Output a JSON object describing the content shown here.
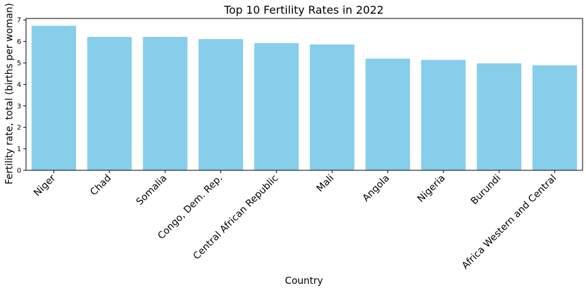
{
  "chart_data": {
    "type": "bar",
    "title": "Top 10 Fertility Rates in 2022",
    "xlabel": "Country",
    "ylabel": "Fertility rate, total (births per woman)",
    "categories": [
      "Niger",
      "Chad",
      "Somalia",
      "Congo, Dem. Rep.",
      "Central African Republic",
      "Mali",
      "Angola",
      "Nigeria",
      "Burundi",
      "Africa Western and Central"
    ],
    "values": [
      6.73,
      6.21,
      6.21,
      6.11,
      5.92,
      5.86,
      5.2,
      5.14,
      4.98,
      4.89
    ],
    "ylim": [
      0,
      7.07
    ],
    "yticks": [
      0,
      1,
      2,
      3,
      4,
      5,
      6,
      7
    ],
    "bar_color": "#87ceeb",
    "grid": false,
    "legend": "none"
  }
}
